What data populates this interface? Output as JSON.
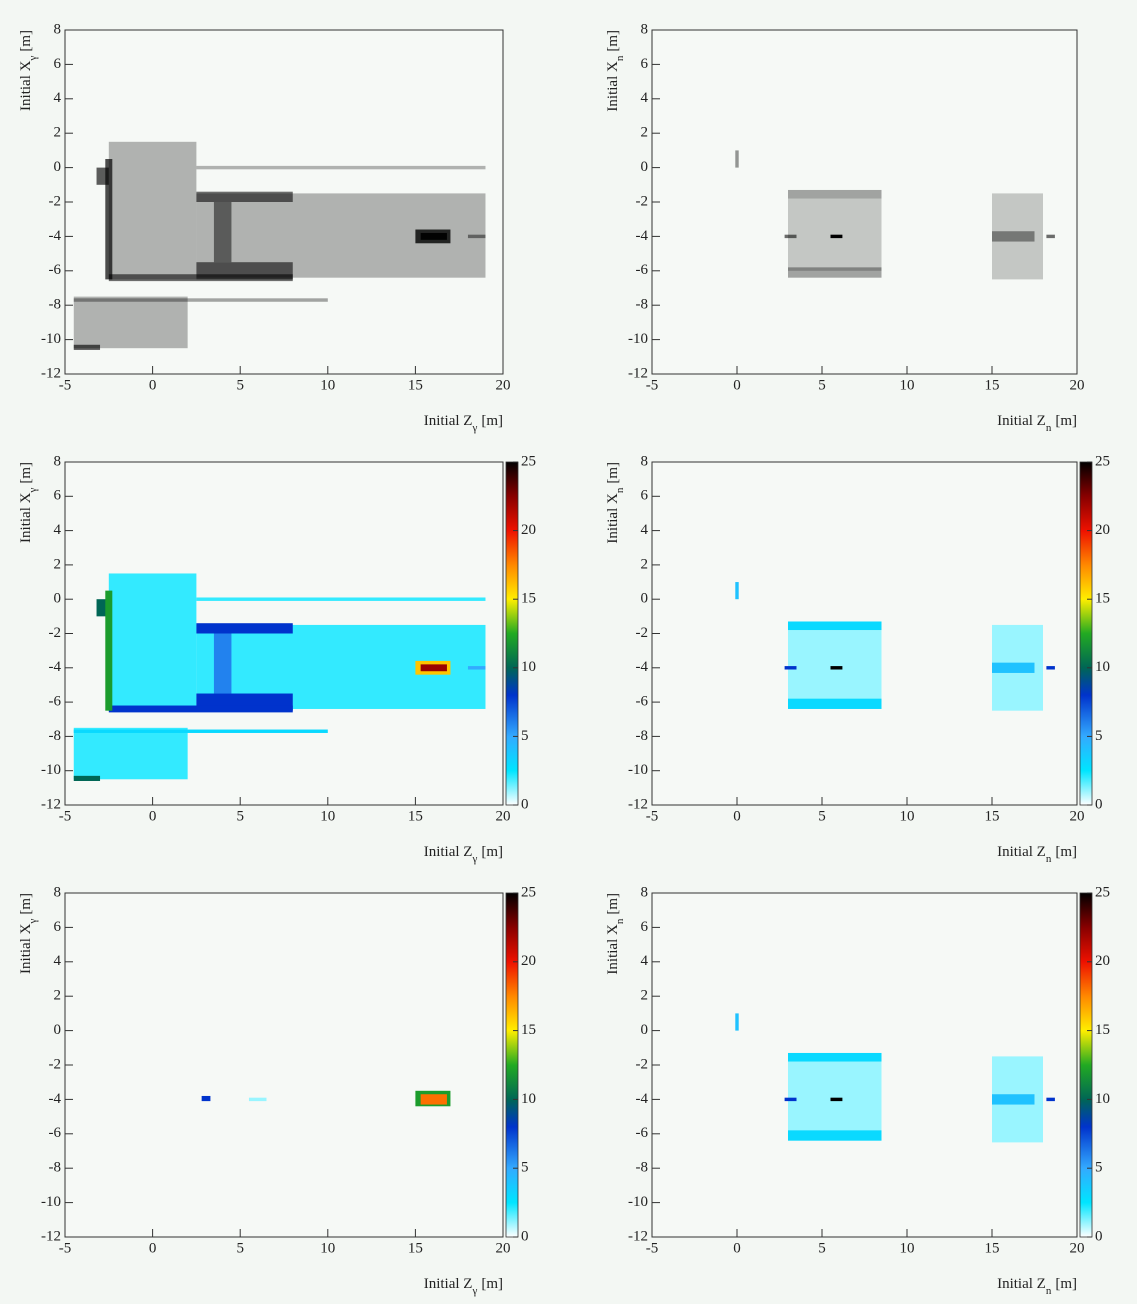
{
  "chart_data": [
    {
      "type": "heatmap",
      "colormap": "gray",
      "xlabel": [
        "Initial Z",
        "γ",
        "[m]"
      ],
      "ylabel": [
        "Initial X",
        "γ",
        "[m]"
      ],
      "xlim": [
        -5,
        20
      ],
      "ylim": [
        -12,
        8
      ],
      "xticks": [
        -5,
        0,
        5,
        10,
        15,
        20
      ],
      "yticks": [
        -12,
        -10,
        -8,
        -6,
        -4,
        -2,
        0,
        2,
        4,
        6,
        8
      ],
      "cells": [
        {
          "z": [
            -2.5,
            2.5
          ],
          "x": [
            -6.5,
            1.5
          ],
          "v": 2
        },
        {
          "z": [
            2.5,
            19
          ],
          "x": [
            -6.4,
            -1.5
          ],
          "v": 2
        },
        {
          "z": [
            2.5,
            19
          ],
          "x": [
            -0.1,
            0.1
          ],
          "v": 2
        },
        {
          "z": [
            -4.5,
            2
          ],
          "x": [
            -10.5,
            -7.5
          ],
          "v": 2
        },
        {
          "z": [
            -4.5,
            10
          ],
          "x": [
            -7.8,
            -7.6
          ],
          "v": 3
        },
        {
          "z": [
            2.5,
            8
          ],
          "x": [
            -2,
            -1.4
          ],
          "v": 8
        },
        {
          "z": [
            2.5,
            8
          ],
          "x": [
            -6.5,
            -5.5
          ],
          "v": 8
        },
        {
          "z": [
            -2.5,
            8
          ],
          "x": [
            -6.6,
            -6.2
          ],
          "v": 8
        },
        {
          "z": [
            3.5,
            4.5
          ],
          "x": [
            -5.5,
            -2
          ],
          "v": 6
        },
        {
          "z": [
            -3.2,
            -2.5
          ],
          "x": [
            -1,
            0
          ],
          "v": 10
        },
        {
          "z": [
            -2.7,
            -2.3
          ],
          "x": [
            -6.5,
            0.5
          ],
          "v": 12
        },
        {
          "z": [
            -4.5,
            -3
          ],
          "x": [
            -10.6,
            -10.3
          ],
          "v": 10
        },
        {
          "z": [
            18,
            19
          ],
          "x": [
            -4.1,
            -3.9
          ],
          "v": 5
        },
        {
          "z": [
            15,
            17
          ],
          "x": [
            -4.4,
            -3.6
          ],
          "v": 16
        },
        {
          "z": [
            15.3,
            16.8
          ],
          "x": [
            -4.2,
            -3.8
          ],
          "v": 22
        }
      ]
    },
    {
      "type": "heatmap",
      "colormap": "gray",
      "xlabel": [
        "Initial Z",
        "n",
        "[m]"
      ],
      "ylabel": [
        "Initial X",
        "n",
        "[m]"
      ],
      "xlim": [
        -5,
        20
      ],
      "ylim": [
        -12,
        8
      ],
      "xticks": [
        -5,
        0,
        5,
        10,
        15,
        20
      ],
      "yticks": [
        -12,
        -10,
        -8,
        -6,
        -4,
        -2,
        0,
        2,
        4,
        6,
        8
      ],
      "cells": [
        {
          "z": [
            3,
            8.5
          ],
          "x": [
            -6,
            -1.8
          ],
          "v": 1
        },
        {
          "z": [
            15,
            18
          ],
          "x": [
            -6.5,
            -1.5
          ],
          "v": 1
        },
        {
          "z": [
            3,
            8.5
          ],
          "x": [
            -1.8,
            -1.3
          ],
          "v": 3
        },
        {
          "z": [
            3,
            8.5
          ],
          "x": [
            -6.4,
            -5.8
          ],
          "v": 3
        },
        {
          "z": [
            -0.1,
            0.1
          ],
          "x": [
            0,
            1
          ],
          "v": 4
        },
        {
          "z": [
            15,
            17.5
          ],
          "x": [
            -4.3,
            -3.7
          ],
          "v": 4
        },
        {
          "z": [
            2.8,
            3.5
          ],
          "x": [
            -4.1,
            -3.9
          ],
          "v": 8
        },
        {
          "z": [
            18.2,
            18.7
          ],
          "x": [
            -4.1,
            -3.9
          ],
          "v": 8
        },
        {
          "z": [
            5.5,
            6.2
          ],
          "x": [
            -4.1,
            -3.9
          ],
          "v": 25
        }
      ]
    },
    {
      "type": "heatmap",
      "colormap": "rainbow",
      "colorbar": true,
      "zlim": [
        0,
        25
      ],
      "zticks": [
        0,
        5,
        10,
        15,
        20,
        25
      ],
      "xlabel": [
        "Initial Z",
        "γ",
        "[m]"
      ],
      "ylabel": [
        "Initial X",
        "γ",
        "[m]"
      ],
      "xlim": [
        -5,
        20
      ],
      "ylim": [
        -12,
        8
      ],
      "xticks": [
        -5,
        0,
        5,
        10,
        15,
        20
      ],
      "yticks": [
        -12,
        -10,
        -8,
        -6,
        -4,
        -2,
        0,
        2,
        4,
        6,
        8
      ],
      "cells": [
        {
          "z": [
            -2.5,
            2.5
          ],
          "x": [
            -6.5,
            1.5
          ],
          "v": 2
        },
        {
          "z": [
            2.5,
            19
          ],
          "x": [
            -6.4,
            -1.5
          ],
          "v": 2
        },
        {
          "z": [
            2.5,
            19
          ],
          "x": [
            -0.1,
            0.1
          ],
          "v": 2
        },
        {
          "z": [
            -4.5,
            2
          ],
          "x": [
            -10.5,
            -7.5
          ],
          "v": 2
        },
        {
          "z": [
            -4.5,
            10
          ],
          "x": [
            -7.8,
            -7.6
          ],
          "v": 3
        },
        {
          "z": [
            2.5,
            8
          ],
          "x": [
            -2,
            -1.4
          ],
          "v": 8
        },
        {
          "z": [
            2.5,
            8
          ],
          "x": [
            -6.5,
            -5.5
          ],
          "v": 8
        },
        {
          "z": [
            -2.5,
            8
          ],
          "x": [
            -6.6,
            -6.2
          ],
          "v": 8
        },
        {
          "z": [
            3.5,
            4.5
          ],
          "x": [
            -5.5,
            -2
          ],
          "v": 6
        },
        {
          "z": [
            -3.2,
            -2.5
          ],
          "x": [
            -1,
            0
          ],
          "v": 10
        },
        {
          "z": [
            -2.7,
            -2.3
          ],
          "x": [
            -6.5,
            0.5
          ],
          "v": 12
        },
        {
          "z": [
            -4.5,
            -3
          ],
          "x": [
            -10.6,
            -10.3
          ],
          "v": 10
        },
        {
          "z": [
            18,
            19
          ],
          "x": [
            -4.1,
            -3.9
          ],
          "v": 5
        },
        {
          "z": [
            15,
            17
          ],
          "x": [
            -4.4,
            -3.6
          ],
          "v": 16
        },
        {
          "z": [
            15.3,
            16.8
          ],
          "x": [
            -4.2,
            -3.8
          ],
          "v": 22
        }
      ]
    },
    {
      "type": "heatmap",
      "colormap": "rainbow",
      "colorbar": true,
      "zlim": [
        0,
        25
      ],
      "zticks": [
        0,
        5,
        10,
        15,
        20,
        25
      ],
      "xlabel": [
        "Initial Z",
        "n",
        "[m]"
      ],
      "ylabel": [
        "Initial X",
        "n",
        "[m]"
      ],
      "xlim": [
        -5,
        20
      ],
      "ylim": [
        -12,
        8
      ],
      "xticks": [
        -5,
        0,
        5,
        10,
        15,
        20
      ],
      "yticks": [
        -12,
        -10,
        -8,
        -6,
        -4,
        -2,
        0,
        2,
        4,
        6,
        8
      ],
      "cells": [
        {
          "z": [
            3,
            8.5
          ],
          "x": [
            -6,
            -1.8
          ],
          "v": 1
        },
        {
          "z": [
            15,
            18
          ],
          "x": [
            -6.5,
            -1.5
          ],
          "v": 1
        },
        {
          "z": [
            3,
            8.5
          ],
          "x": [
            -1.8,
            -1.3
          ],
          "v": 3
        },
        {
          "z": [
            3,
            8.5
          ],
          "x": [
            -6.4,
            -5.8
          ],
          "v": 3
        },
        {
          "z": [
            -0.1,
            0.1
          ],
          "x": [
            0,
            1
          ],
          "v": 4
        },
        {
          "z": [
            15,
            17.5
          ],
          "x": [
            -4.3,
            -3.7
          ],
          "v": 4
        },
        {
          "z": [
            2.8,
            3.5
          ],
          "x": [
            -4.1,
            -3.9
          ],
          "v": 8
        },
        {
          "z": [
            18.2,
            18.7
          ],
          "x": [
            -4.1,
            -3.9
          ],
          "v": 8
        },
        {
          "z": [
            5.5,
            6.2
          ],
          "x": [
            -4.1,
            -3.9
          ],
          "v": 25
        }
      ]
    },
    {
      "type": "heatmap",
      "colormap": "rainbow",
      "colorbar": true,
      "zlim": [
        0,
        25
      ],
      "zticks": [
        0,
        5,
        10,
        15,
        20,
        25
      ],
      "xlabel": [
        "Initial Z",
        "γ",
        "[m]"
      ],
      "ylabel": [
        "Initial X",
        "γ",
        "[m]"
      ],
      "xlim": [
        -5,
        20
      ],
      "ylim": [
        -12,
        8
      ],
      "xticks": [
        -5,
        0,
        5,
        10,
        15,
        20
      ],
      "yticks": [
        -12,
        -10,
        -8,
        -6,
        -4,
        -2,
        0,
        2,
        4,
        6,
        8
      ],
      "cells": [
        {
          "z": [
            5.5,
            6.5
          ],
          "x": [
            -4.1,
            -3.9
          ],
          "v": 1
        },
        {
          "z": [
            2.8,
            3.3
          ],
          "x": [
            -4.1,
            -3.8
          ],
          "v": 8
        },
        {
          "z": [
            15,
            17
          ],
          "x": [
            -4.4,
            -3.5
          ],
          "v": 12
        },
        {
          "z": [
            15.3,
            16.8
          ],
          "x": [
            -4.3,
            -3.7
          ],
          "v": 18
        }
      ]
    },
    {
      "type": "heatmap",
      "colormap": "rainbow",
      "colorbar": true,
      "zlim": [
        0,
        25
      ],
      "zticks": [
        0,
        5,
        10,
        15,
        20,
        25
      ],
      "xlabel": [
        "Initial Z",
        "n",
        "[m]"
      ],
      "ylabel": [
        "Initial X",
        "n",
        "[m]"
      ],
      "xlim": [
        -5,
        20
      ],
      "ylim": [
        -12,
        8
      ],
      "xticks": [
        -5,
        0,
        5,
        10,
        15,
        20
      ],
      "yticks": [
        -12,
        -10,
        -8,
        -6,
        -4,
        -2,
        0,
        2,
        4,
        6,
        8
      ],
      "cells": [
        {
          "z": [
            3,
            8.5
          ],
          "x": [
            -6,
            -1.8
          ],
          "v": 1
        },
        {
          "z": [
            15,
            18
          ],
          "x": [
            -6.5,
            -1.5
          ],
          "v": 1
        },
        {
          "z": [
            3,
            8.5
          ],
          "x": [
            -1.8,
            -1.3
          ],
          "v": 3
        },
        {
          "z": [
            3,
            8.5
          ],
          "x": [
            -6.4,
            -5.8
          ],
          "v": 3
        },
        {
          "z": [
            -0.1,
            0.1
          ],
          "x": [
            0,
            1
          ],
          "v": 4
        },
        {
          "z": [
            15,
            17.5
          ],
          "x": [
            -4.3,
            -3.7
          ],
          "v": 4
        },
        {
          "z": [
            2.8,
            3.5
          ],
          "x": [
            -4.1,
            -3.9
          ],
          "v": 8
        },
        {
          "z": [
            18.2,
            18.7
          ],
          "x": [
            -4.1,
            -3.9
          ],
          "v": 8
        },
        {
          "z": [
            5.5,
            6.2
          ],
          "x": [
            -4.1,
            -3.9
          ],
          "v": 25
        }
      ]
    }
  ]
}
